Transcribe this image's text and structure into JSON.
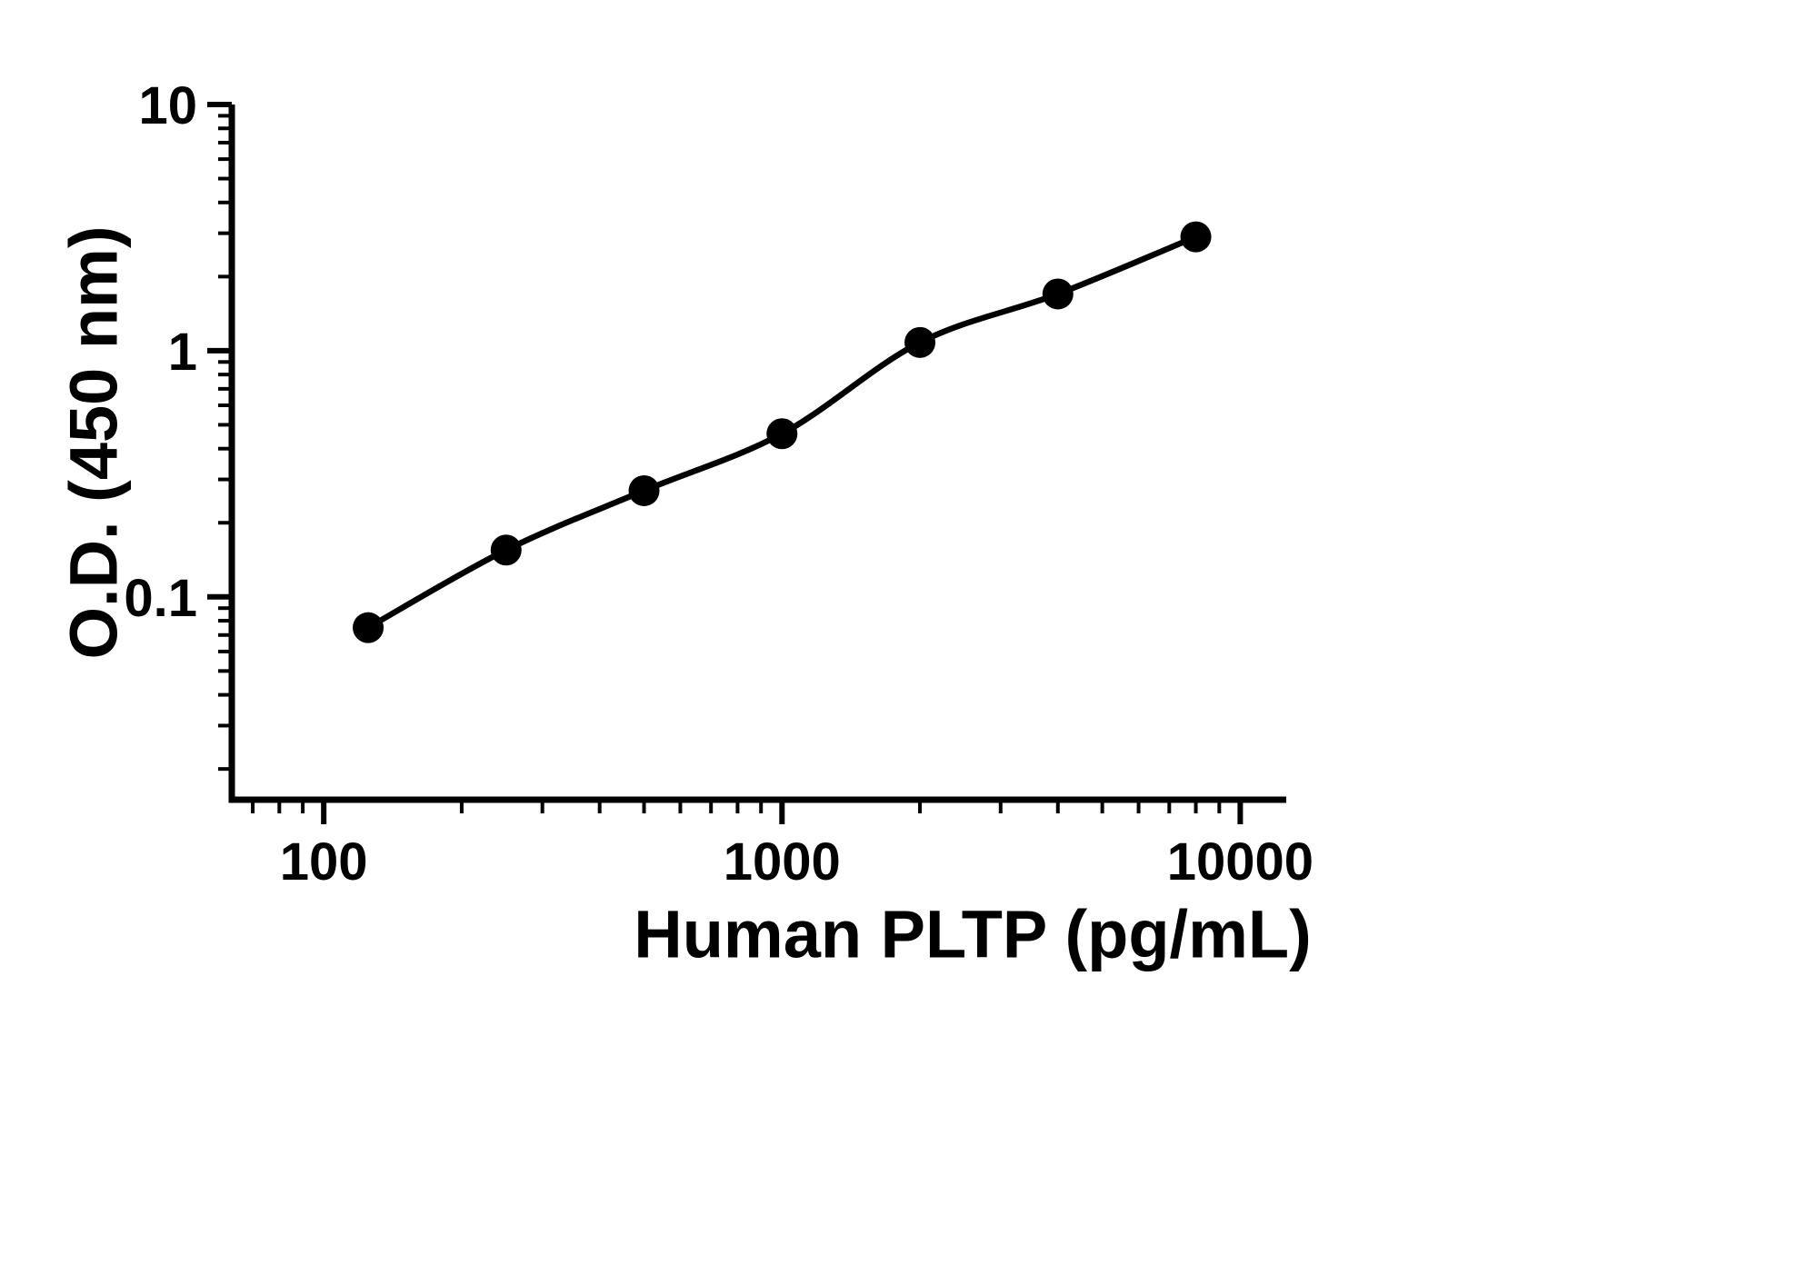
{
  "figure": {
    "background": "#ffffff",
    "ink_color": "#000000"
  },
  "chart_data": {
    "type": "scatter",
    "xlabel": "Human PLTP (pg/mL)",
    "ylabel": "O.D. (450 nm)",
    "x_scale": "log",
    "y_scale": "log",
    "x": [
      125,
      250,
      500,
      1000,
      2000,
      4000,
      8000
    ],
    "y": [
      0.075,
      0.155,
      0.27,
      0.46,
      1.08,
      1.7,
      2.9
    ],
    "xlim": [
      63,
      12600
    ],
    "ylim": [
      0.015,
      10
    ],
    "x_ticks": [
      100,
      1000,
      10000
    ],
    "y_ticks": [
      0.1,
      1,
      10
    ],
    "grid": false,
    "legend": "none",
    "marker": "filled-circle",
    "fit_line": true,
    "line_color": "#000000",
    "point_color": "#000000"
  }
}
